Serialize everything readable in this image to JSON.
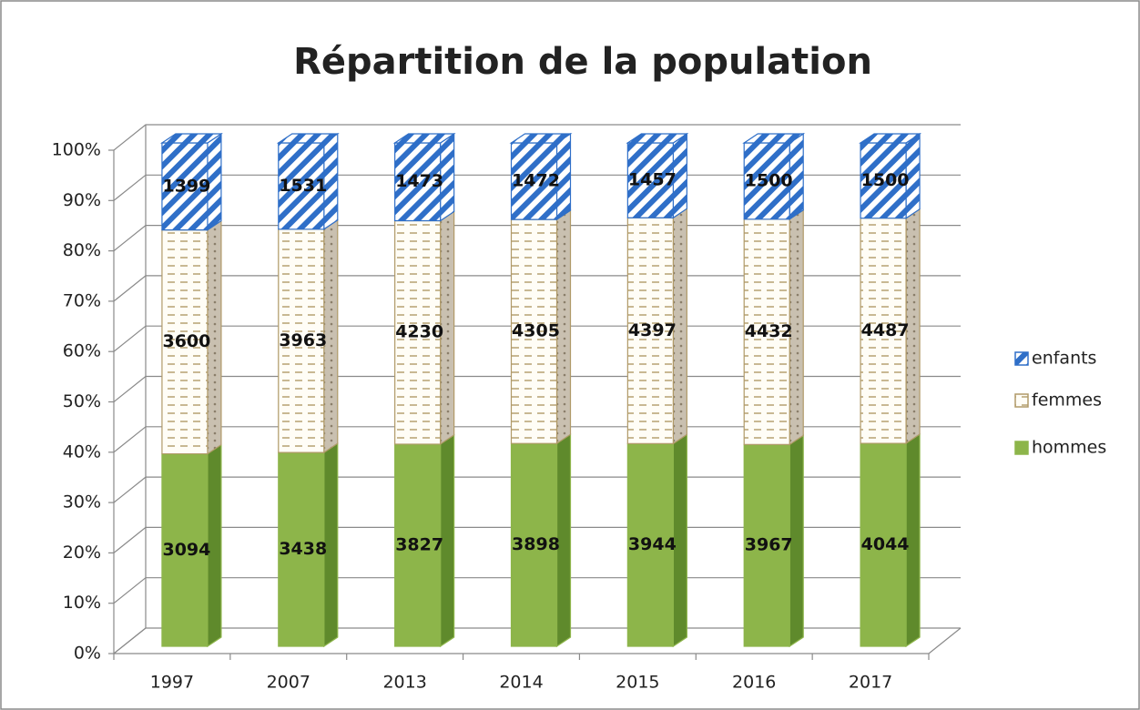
{
  "chart_data": {
    "type": "bar",
    "stacking": "percent",
    "title": "Répartition de la population",
    "categories": [
      "1997",
      "2007",
      "2013",
      "2014",
      "2015",
      "2016",
      "2017"
    ],
    "series": [
      {
        "name": "hommes",
        "color": "#8db54a",
        "values": [
          3094,
          3438,
          3827,
          3898,
          3944,
          3967,
          4044
        ]
      },
      {
        "name": "femmes",
        "color": "#b09a68",
        "values": [
          3600,
          3963,
          4230,
          4305,
          4397,
          4432,
          4487
        ]
      },
      {
        "name": "enfants",
        "color": "#2f6fc8",
        "values": [
          1399,
          1531,
          1473,
          1472,
          1457,
          1500,
          1500
        ]
      }
    ],
    "ylim": [
      0,
      100
    ],
    "yticks": [
      {
        "value": 0,
        "label": "0%"
      },
      {
        "value": 10,
        "label": "10%"
      },
      {
        "value": 20,
        "label": "20%"
      },
      {
        "value": 30,
        "label": "30%"
      },
      {
        "value": 40,
        "label": "40%"
      },
      {
        "value": 50,
        "label": "50%"
      },
      {
        "value": 60,
        "label": "60%"
      },
      {
        "value": 70,
        "label": "70%"
      },
      {
        "value": 80,
        "label": "80%"
      },
      {
        "value": 90,
        "label": "90%"
      },
      {
        "value": 100,
        "label": "100%"
      }
    ],
    "grid": true,
    "legend": "right"
  }
}
